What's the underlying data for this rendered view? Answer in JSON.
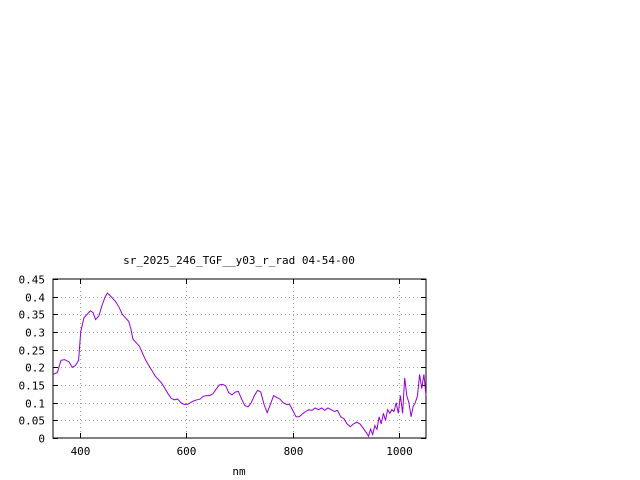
{
  "chart_data": {
    "type": "line",
    "title": "sr_2025_246_TGF__y03_r_rad 04-54-00",
    "xlabel": "nm",
    "ylabel": "",
    "xlim": [
      350,
      1050
    ],
    "ylim": [
      0,
      0.45
    ],
    "xticks": [
      400,
      600,
      800,
      1000
    ],
    "yticks": [
      0,
      0.05,
      0.1,
      0.15,
      0.2,
      0.25,
      0.3,
      0.35,
      0.4,
      0.45
    ],
    "xtick_labels": [
      "400",
      "600",
      "800",
      "1000"
    ],
    "ytick_labels": [
      "0",
      "0.05",
      "0.1",
      "0.15",
      "0.2",
      "0.25",
      "0.3",
      "0.35",
      "0.4",
      "0.45"
    ],
    "grid": true,
    "line_color": "#9400d3",
    "series": [
      {
        "x": [
          350,
          358,
          365,
          372,
          380,
          386,
          392,
          398,
          402,
          408,
          414,
          420,
          425,
          430,
          436,
          442,
          448,
          452,
          456,
          462,
          468,
          474,
          480,
          486,
          492,
          496,
          500,
          506,
          512,
          518,
          524,
          530,
          536,
          542,
          548,
          554,
          560,
          566,
          572,
          578,
          584,
          590,
          596,
          602,
          608,
          614,
          620,
          626,
          632,
          638,
          644,
          650,
          656,
          662,
          668,
          674,
          680,
          686,
          692,
          698,
          704,
          710,
          716,
          722,
          728,
          734,
          740,
          746,
          752,
          758,
          764,
          770,
          776,
          782,
          788,
          794,
          800,
          806,
          812,
          818,
          824,
          830,
          836,
          842,
          848,
          854,
          860,
          866,
          872,
          878,
          884,
          890,
          896,
          902,
          908,
          914,
          920,
          926,
          932,
          938,
          942,
          946,
          950,
          954,
          958,
          962,
          966,
          970,
          974,
          978,
          982,
          986,
          990,
          994,
          998,
          1002,
          1006,
          1010,
          1014,
          1018,
          1022,
          1026,
          1030,
          1034,
          1038,
          1042,
          1046,
          1050
        ],
        "y": [
          0.18,
          0.185,
          0.22,
          0.222,
          0.215,
          0.2,
          0.205,
          0.22,
          0.3,
          0.34,
          0.35,
          0.36,
          0.355,
          0.335,
          0.345,
          0.375,
          0.4,
          0.41,
          0.405,
          0.395,
          0.385,
          0.37,
          0.35,
          0.34,
          0.33,
          0.31,
          0.28,
          0.27,
          0.26,
          0.24,
          0.22,
          0.205,
          0.19,
          0.175,
          0.165,
          0.155,
          0.14,
          0.125,
          0.112,
          0.108,
          0.11,
          0.1,
          0.095,
          0.095,
          0.1,
          0.105,
          0.108,
          0.11,
          0.118,
          0.12,
          0.12,
          0.125,
          0.138,
          0.15,
          0.152,
          0.148,
          0.128,
          0.122,
          0.13,
          0.132,
          0.11,
          0.092,
          0.088,
          0.1,
          0.12,
          0.135,
          0.13,
          0.095,
          0.072,
          0.095,
          0.12,
          0.115,
          0.11,
          0.1,
          0.095,
          0.095,
          0.078,
          0.06,
          0.06,
          0.068,
          0.075,
          0.08,
          0.078,
          0.085,
          0.08,
          0.085,
          0.078,
          0.085,
          0.08,
          0.075,
          0.078,
          0.06,
          0.055,
          0.04,
          0.032,
          0.04,
          0.045,
          0.04,
          0.028,
          0.015,
          0.005,
          0.025,
          0.01,
          0.035,
          0.025,
          0.06,
          0.04,
          0.07,
          0.05,
          0.08,
          0.07,
          0.08,
          0.075,
          0.1,
          0.07,
          0.12,
          0.07,
          0.17,
          0.12,
          0.1,
          0.06,
          0.09,
          0.1,
          0.12,
          0.18,
          0.14,
          0.18,
          0.12
        ]
      }
    ]
  }
}
